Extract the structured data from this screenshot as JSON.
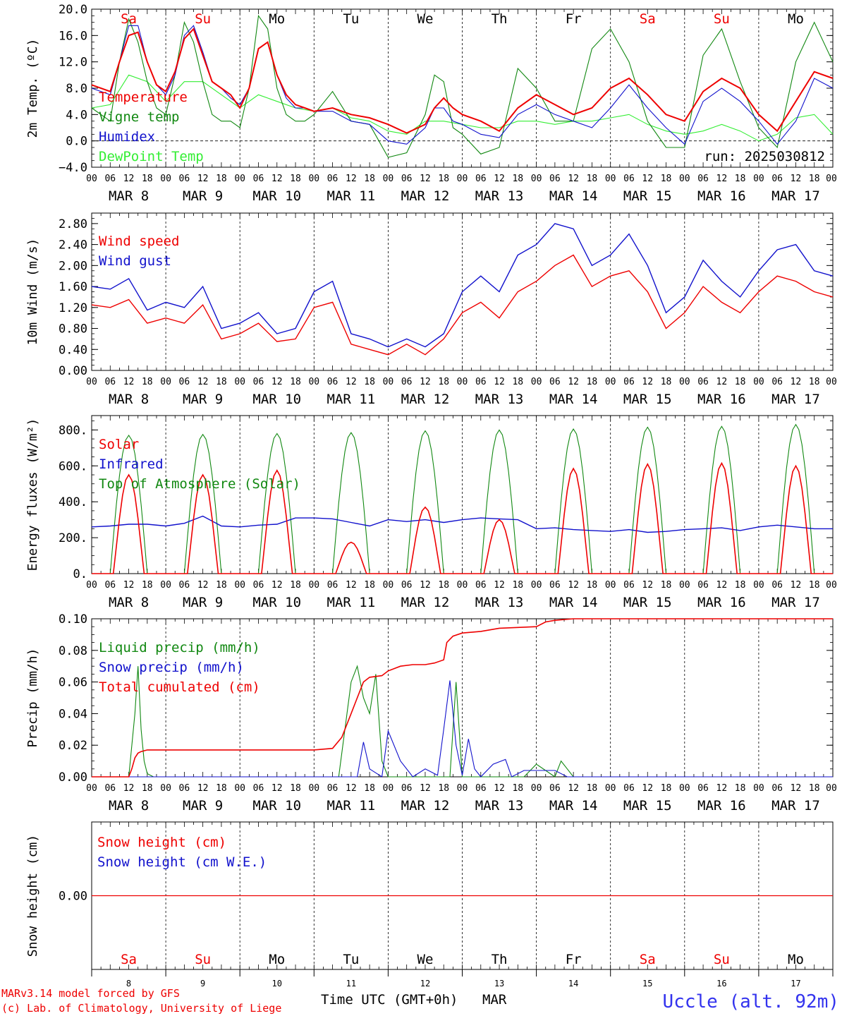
{
  "days": [
    "Sa",
    "Su",
    "Mo",
    "Tu",
    "We",
    "Th",
    "Fr",
    "Sa",
    "Su",
    "Mo"
  ],
  "weekend_flags": [
    true,
    true,
    false,
    false,
    false,
    false,
    false,
    true,
    true,
    false
  ],
  "dates": [
    "MAR  8",
    "MAR  9",
    "MAR 10",
    "MAR 11",
    "MAR 12",
    "MAR 13",
    "MAR 14",
    "MAR 15",
    "MAR 16",
    "MAR 17"
  ],
  "day_numbers": [
    "8",
    "9",
    "10",
    "11",
    "12",
    "13",
    "14",
    "15",
    "16",
    "17"
  ],
  "hour_ticks": [
    "00",
    "06",
    "12",
    "18"
  ],
  "hour_end": "00",
  "run_label": "run: 2025030812",
  "footer": {
    "model": "MARv3.14 model forced by GFS",
    "copyright": "(c) Lab. of Climatology, University of Liege",
    "axis_title": "Time UTC (GMT+0h)",
    "month": "MAR",
    "station": "Uccle (alt. 92m)"
  },
  "colors": {
    "red": "#ee0000",
    "darkgreen": "#118811",
    "blue": "#1111cc",
    "lightgreen": "#33ee33",
    "weekend": "#ee0000",
    "weekday": "#000000",
    "station": "#3333ee"
  },
  "chart_data": [
    {
      "id": "temp",
      "type": "line",
      "ylabel": "2m Temp. (ºC)",
      "ylim": [
        -4,
        20
      ],
      "yticks": [
        "20.0",
        "16.0",
        "12.0",
        "8.0",
        "4.0",
        "0.0",
        "−4.0"
      ],
      "ytick_values": [
        20,
        16,
        12,
        8,
        4,
        0,
        -4
      ],
      "zero_line": true,
      "x_unit": "hours since MAR 8 00 UTC",
      "series": [
        {
          "name": "Temperature",
          "color": "red",
          "x": [
            0,
            6,
            9,
            12,
            15,
            18,
            21,
            24,
            27,
            30,
            33,
            36,
            39,
            42,
            45,
            48,
            51,
            54,
            57,
            60,
            63,
            66,
            69,
            72,
            78,
            84,
            90,
            96,
            102,
            108,
            111,
            114,
            117,
            120,
            126,
            132,
            138,
            144,
            150,
            156,
            162,
            168,
            174,
            180,
            186,
            192,
            198,
            204,
            210,
            216,
            222,
            228,
            234,
            240
          ],
          "y": [
            8.5,
            7.5,
            12,
            16,
            16.5,
            12,
            8.5,
            7.5,
            10.5,
            15.5,
            17,
            13,
            9,
            8,
            7,
            5,
            8,
            14,
            15,
            10,
            7,
            5.5,
            5,
            4.5,
            5,
            4,
            3.5,
            2.5,
            1.2,
            2.5,
            5,
            6.5,
            5,
            4,
            3,
            1.5,
            5,
            7,
            5.5,
            4,
            5,
            8,
            9.5,
            7,
            4,
            3,
            7.5,
            9.5,
            8,
            4,
            1.5,
            6,
            10.5,
            9.5
          ]
        },
        {
          "name": "Vigne temp",
          "color": "darkgreen",
          "x": [
            0,
            6,
            9,
            12,
            15,
            18,
            21,
            24,
            27,
            30,
            33,
            36,
            39,
            42,
            45,
            48,
            51,
            54,
            57,
            60,
            63,
            66,
            69,
            72,
            78,
            84,
            90,
            96,
            102,
            108,
            111,
            114,
            117,
            120,
            126,
            132,
            138,
            144,
            150,
            156,
            162,
            168,
            174,
            180,
            186,
            192,
            198,
            204,
            210,
            216,
            222,
            228,
            234,
            240
          ],
          "y": [
            5,
            3,
            12,
            18.5,
            15,
            9,
            5,
            4,
            10,
            18,
            15,
            9,
            4,
            3,
            3,
            2,
            8,
            19,
            17,
            8,
            4,
            3,
            3,
            4,
            7.5,
            3,
            2.5,
            -2.5,
            -1.8,
            4,
            10,
            9,
            2,
            1,
            -2,
            -1,
            11,
            8,
            3,
            3,
            14,
            17,
            12,
            3,
            -1,
            -1,
            13,
            17,
            9,
            2,
            -1,
            12,
            18,
            12
          ]
        },
        {
          "name": "Humidex",
          "color": "blue",
          "x": [
            0,
            6,
            9,
            12,
            15,
            18,
            21,
            24,
            27,
            30,
            33,
            36,
            39,
            42,
            45,
            48,
            51,
            54,
            57,
            60,
            63,
            66,
            69,
            72,
            78,
            84,
            90,
            96,
            102,
            108,
            111,
            114,
            117,
            120,
            126,
            132,
            138,
            144,
            150,
            156,
            162,
            168,
            174,
            180,
            186,
            192,
            198,
            204,
            210,
            216,
            222,
            228,
            234,
            240
          ],
          "y": [
            8,
            7,
            12,
            17.5,
            17.5,
            12,
            8.5,
            7,
            10,
            16,
            17.5,
            13.5,
            9,
            8,
            6.5,
            5.5,
            8,
            14,
            15,
            10,
            6.5,
            5,
            5,
            4.5,
            4.5,
            3,
            2.5,
            0,
            -0.5,
            2,
            5,
            5,
            3,
            2.5,
            1,
            0.5,
            4,
            5.5,
            4,
            3,
            2,
            5,
            8.5,
            5,
            2,
            -0.5,
            6,
            8,
            6,
            3,
            -0.5,
            3,
            9.5,
            8
          ]
        },
        {
          "name": "DewPoint Temp",
          "color": "lightgreen",
          "x": [
            0,
            6,
            12,
            18,
            24,
            30,
            36,
            42,
            48,
            54,
            60,
            66,
            72,
            78,
            84,
            90,
            96,
            102,
            108,
            114,
            120,
            126,
            132,
            138,
            144,
            150,
            156,
            162,
            168,
            174,
            180,
            186,
            192,
            198,
            204,
            210,
            216,
            222,
            228,
            234,
            240
          ],
          "y": [
            5,
            5.5,
            10,
            9,
            6,
            9,
            9,
            7,
            5,
            7,
            6,
            5,
            4.5,
            5,
            3.5,
            3,
            1.5,
            1,
            3,
            3,
            2.5,
            2,
            2,
            3,
            3,
            2.5,
            3,
            3,
            3.5,
            4,
            2.5,
            1.5,
            1,
            1.5,
            2.5,
            1.5,
            0,
            1,
            3.5,
            4,
            1
          ]
        }
      ]
    },
    {
      "id": "wind",
      "type": "line",
      "ylabel": "10m Wind (m/s)",
      "ylim": [
        0,
        3
      ],
      "yticks": [
        "2.80",
        "2.40",
        "2.00",
        "1.60",
        "1.20",
        "0.80",
        "0.40",
        "0.00"
      ],
      "ytick_values": [
        2.8,
        2.4,
        2.0,
        1.6,
        1.2,
        0.8,
        0.4,
        0.0
      ],
      "x_unit": "hours since MAR 8 00 UTC",
      "series": [
        {
          "name": "Wind speed",
          "color": "red",
          "x": [
            0,
            6,
            12,
            18,
            24,
            30,
            36,
            42,
            48,
            54,
            60,
            66,
            72,
            78,
            84,
            90,
            96,
            102,
            108,
            114,
            120,
            126,
            132,
            138,
            144,
            150,
            156,
            162,
            168,
            174,
            180,
            186,
            192,
            198,
            204,
            210,
            216,
            222,
            228,
            234,
            240
          ],
          "y": [
            1.25,
            1.2,
            1.35,
            0.9,
            1.0,
            0.9,
            1.25,
            0.6,
            0.7,
            0.9,
            0.55,
            0.6,
            1.2,
            1.3,
            0.5,
            0.4,
            0.3,
            0.5,
            0.3,
            0.6,
            1.1,
            1.3,
            1.0,
            1.5,
            1.7,
            2.0,
            2.2,
            1.6,
            1.8,
            1.9,
            1.5,
            0.8,
            1.1,
            1.6,
            1.3,
            1.1,
            1.5,
            1.8,
            1.7,
            1.5,
            1.4
          ]
        },
        {
          "name": "Wind gust",
          "color": "blue",
          "x": [
            0,
            6,
            12,
            18,
            24,
            30,
            36,
            42,
            48,
            54,
            60,
            66,
            72,
            78,
            84,
            90,
            96,
            102,
            108,
            114,
            120,
            126,
            132,
            138,
            144,
            150,
            156,
            162,
            168,
            174,
            180,
            186,
            192,
            198,
            204,
            210,
            216,
            222,
            228,
            234,
            240
          ],
          "y": [
            1.6,
            1.55,
            1.75,
            1.15,
            1.3,
            1.2,
            1.6,
            0.8,
            0.9,
            1.1,
            0.7,
            0.8,
            1.5,
            1.7,
            0.7,
            0.6,
            0.45,
            0.6,
            0.45,
            0.7,
            1.5,
            1.8,
            1.5,
            2.2,
            2.4,
            2.8,
            2.7,
            2.0,
            2.2,
            2.6,
            2.0,
            1.1,
            1.4,
            2.1,
            1.7,
            1.4,
            1.9,
            2.3,
            2.4,
            1.9,
            1.8
          ]
        }
      ]
    },
    {
      "id": "energy",
      "type": "line",
      "ylabel": "Energy fluxes (W/m²)",
      "ylim": [
        0,
        880
      ],
      "yticks": [
        "800.",
        "600.",
        "400.",
        "200.",
        "0."
      ],
      "ytick_values": [
        800,
        600,
        400,
        200,
        0
      ],
      "x_unit": "hours since MAR 8 00 UTC",
      "toa_peaks": [
        770,
        775,
        780,
        785,
        795,
        800,
        805,
        815,
        820,
        830
      ],
      "solar_peaks": [
        550,
        550,
        575,
        175,
        370,
        300,
        585,
        610,
        615,
        600
      ],
      "infrared": [
        260,
        265,
        275,
        275,
        265,
        280,
        320,
        265,
        260,
        270,
        275,
        310,
        310,
        305,
        285,
        265,
        300,
        290,
        300,
        285,
        300,
        310,
        305,
        300,
        250,
        255,
        245,
        240,
        235,
        245,
        230,
        235,
        245,
        250,
        255,
        240,
        260,
        270,
        260,
        250
      ],
      "series": [
        {
          "name": "Solar",
          "color": "red"
        },
        {
          "name": "Infrared",
          "color": "blue"
        },
        {
          "name": "Top of Atmosphere (Solar)",
          "color": "darkgreen"
        }
      ]
    },
    {
      "id": "precip",
      "type": "line",
      "ylabel": "Precip (mm/h)",
      "ylim": [
        0,
        0.1
      ],
      "yticks": [
        "0.10",
        "0.08",
        "0.06",
        "0.04",
        "0.02",
        "0.00"
      ],
      "ytick_values": [
        0.1,
        0.08,
        0.06,
        0.04,
        0.02,
        0.0
      ],
      "x_unit": "hours since MAR 8 00 UTC",
      "series": [
        {
          "name": "Liquid precip (mm/h)",
          "color": "darkgreen",
          "x": [
            0,
            12,
            14,
            15,
            16,
            17,
            18,
            20,
            70,
            80,
            84,
            86,
            88,
            90,
            92,
            94,
            96,
            116,
            118,
            120,
            140,
            144,
            150,
            152,
            154,
            156,
            160,
            240
          ],
          "y": [
            0,
            0,
            0.04,
            0.07,
            0.03,
            0.01,
            0.002,
            0,
            0,
            0,
            0.06,
            0.07,
            0.05,
            0.04,
            0.065,
            0.01,
            0,
            0,
            0.06,
            0,
            0,
            0.008,
            0,
            0.01,
            0.005,
            0,
            0,
            0
          ]
        },
        {
          "name": "Snow precip (mm/h)",
          "color": "blue",
          "x": [
            0,
            80,
            86,
            88,
            90,
            94,
            96,
            100,
            104,
            108,
            112,
            114,
            116,
            118,
            120,
            122,
            124,
            126,
            130,
            134,
            136,
            140,
            150,
            154,
            160,
            240
          ],
          "y": [
            0,
            0,
            0,
            0.022,
            0.005,
            0,
            0.029,
            0.01,
            0,
            0.005,
            0.001,
            0.03,
            0.061,
            0.02,
            0.001,
            0.024,
            0.005,
            0,
            0.008,
            0.011,
            0,
            0.004,
            0.004,
            0,
            0,
            0
          ]
        },
        {
          "name": "Total cumulated (cm)",
          "color": "red",
          "x": [
            0,
            12,
            13,
            14,
            15,
            16,
            18,
            48,
            72,
            78,
            81,
            84,
            86,
            88,
            90,
            94,
            96,
            100,
            104,
            108,
            111,
            114,
            115,
            117,
            120,
            126,
            132,
            144,
            147,
            150,
            156,
            240
          ],
          "y": [
            0,
            0,
            0.005,
            0.012,
            0.015,
            0.016,
            0.017,
            0.017,
            0.017,
            0.018,
            0.025,
            0.04,
            0.05,
            0.06,
            0.063,
            0.064,
            0.067,
            0.07,
            0.071,
            0.071,
            0.072,
            0.074,
            0.085,
            0.089,
            0.091,
            0.092,
            0.094,
            0.095,
            0.098,
            0.099,
            0.1,
            0.1
          ]
        }
      ]
    },
    {
      "id": "snow",
      "type": "line",
      "ylabel": "Snow height (cm)",
      "ylim": [
        -1,
        1
      ],
      "yticks": [
        "0.00"
      ],
      "ytick_values": [
        0
      ],
      "x_unit": "hours since MAR 8 00 UTC",
      "series": [
        {
          "name": "Snow height (cm)",
          "color": "red",
          "x": [
            0,
            240
          ],
          "y": [
            0,
            0
          ]
        },
        {
          "name": "Snow height (cm W.E.)",
          "color": "blue"
        }
      ]
    }
  ]
}
